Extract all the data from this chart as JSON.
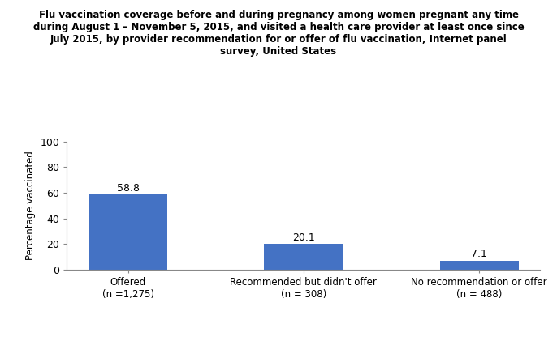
{
  "categories": [
    "Offered\n(n =1,275)",
    "Recommended but didn't offer\n(n = 308)",
    "No recommendation or offer\n(n = 488)"
  ],
  "values": [
    58.8,
    20.1,
    7.1
  ],
  "bar_color": "#4472C4",
  "title": "Flu vaccination coverage before and during pregnancy among women pregnant any time\nduring August 1 – November 5, 2015, and visited a health care provider at least once since\nJuly 2015, by provider recommendation for or offer of flu vaccination, Internet panel\nsurvey, United States",
  "ylabel": "Percentage vaccinated",
  "ylim": [
    0,
    100
  ],
  "yticks": [
    0,
    20,
    40,
    60,
    80,
    100
  ],
  "bar_width": 0.45,
  "title_fontsize": 8.5,
  "label_fontsize": 8.5,
  "tick_fontsize": 9,
  "ylabel_fontsize": 8.5,
  "value_label_fontsize": 9,
  "background_color": "#ffffff"
}
